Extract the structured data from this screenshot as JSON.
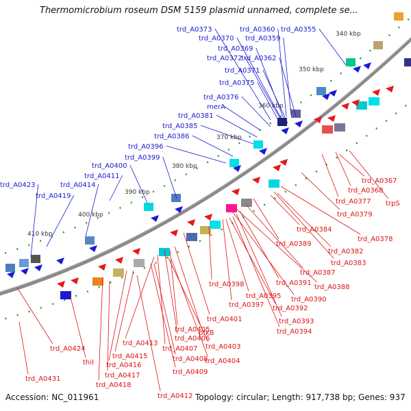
{
  "title": "Thermomicrobium roseum DSM 5159 plasmid unnamed, complete se...",
  "accession_text": "Accession: NC_011961",
  "info_text": "Topology: circular; Length: 917,738 bp; Genes: 937",
  "colors": {
    "backbone": "#8a8a8a",
    "forward_arrow": "#1a1ad6",
    "reverse_arrow": "#e81818",
    "forward_label": "#1a1acc",
    "reverse_label": "#dd1111",
    "ruler_dots": "#2a9a2a",
    "ruler_label": "#333333"
  },
  "ruler_labels": [
    "340 kbp",
    "350 kbp",
    "360 kbp",
    "370 kbp",
    "380 kbp",
    "390 kbp",
    "400 kbp",
    "410 kbp"
  ],
  "forward_labels": [
    "trd_A0373",
    "trd_A0360",
    "trd_A0355",
    "trd_A0370",
    "trd_A0359",
    "trd_A0369",
    "trd_A0372",
    "trd_A0362",
    "trd_A0371",
    "trd_A0375",
    "trd_A0376",
    "merA",
    "trd_A0381",
    "trd_A0385",
    "trd_A0386",
    "trd_A0396",
    "trd_A0399",
    "trd_A0400",
    "trd_A0411",
    "trd_A0423",
    "trd_A0414",
    "trd_A0419"
  ],
  "reverse_labels": [
    "trd_A0367",
    "trd_A0368",
    "trd_A0377",
    "trpS",
    "trd_A0379",
    "trd_A0384",
    "trd_A0378",
    "trd_A0389",
    "trd_A0382",
    "trd_A0383",
    "trd_A0387",
    "trd_A0391",
    "trd_A0388",
    "trd_A0398",
    "trd_A0395",
    "trd_A0390",
    "trd_A0397",
    "trd_A0392",
    "trd_A0393",
    "trd_A0401",
    "trd_A0394",
    "pfkB",
    "trd_A0405",
    "trd_A0406",
    "trd_A0413",
    "trd_A0403",
    "trd_A0407",
    "trd_A0424",
    "trd_A0415",
    "trd_A0408",
    "trd_A0404",
    "thiI",
    "trd_A0416",
    "trd_A0409",
    "trd_A0417",
    "trd_A0418",
    "trd_A0431",
    "trd_A0412"
  ]
}
